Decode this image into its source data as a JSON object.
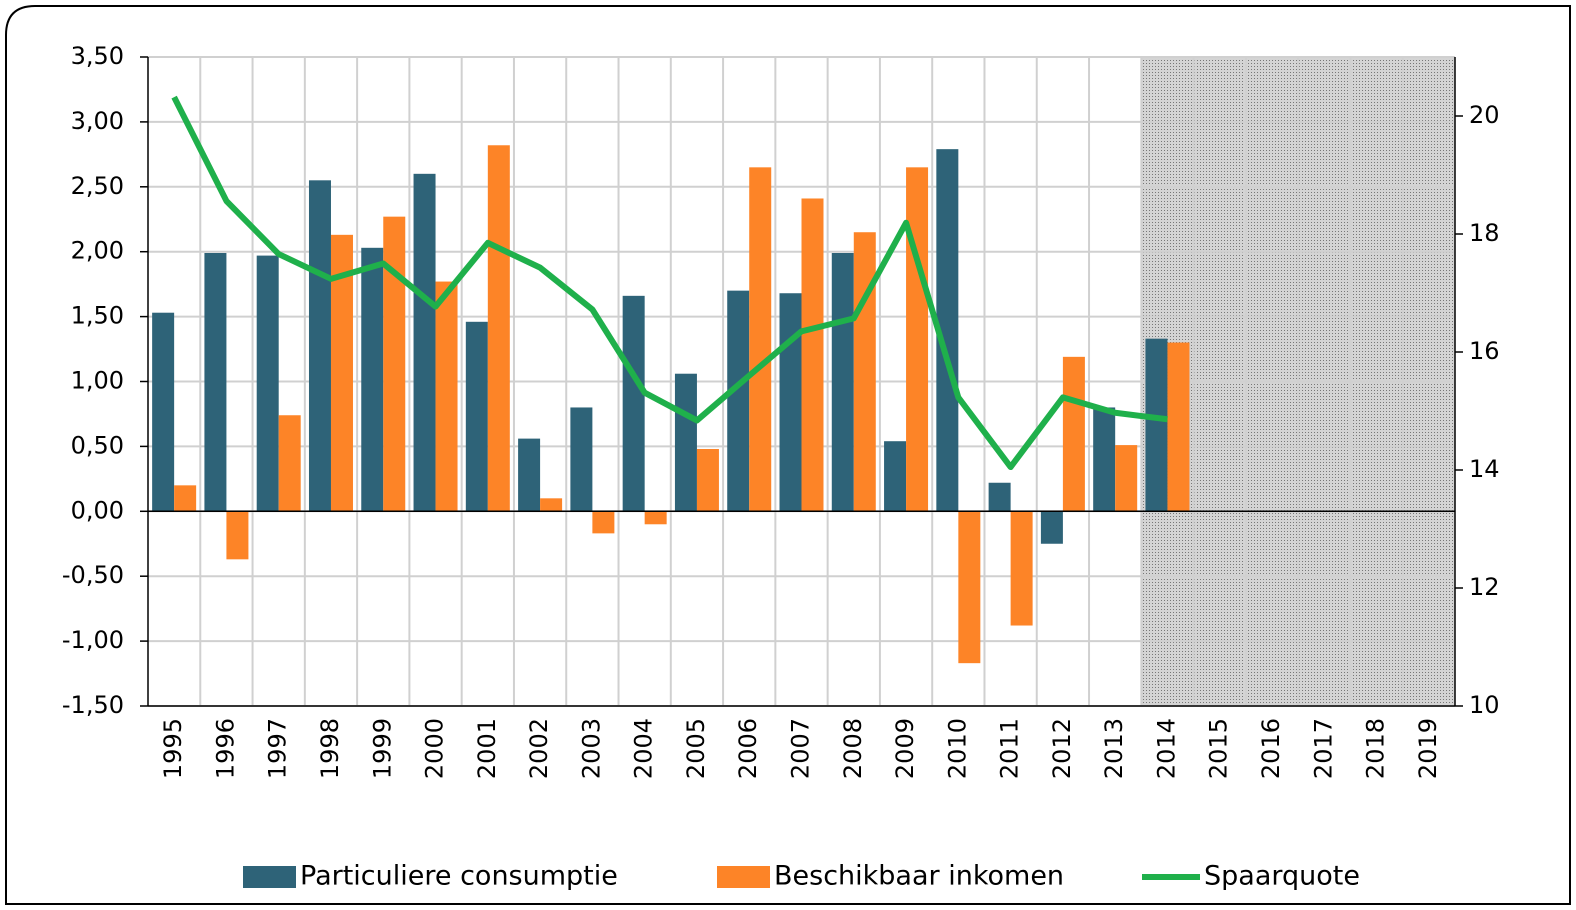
{
  "chart_data": {
    "type": "bar",
    "categories": [
      "1995",
      "1996",
      "1997",
      "1998",
      "1999",
      "2000",
      "2001",
      "2002",
      "2003",
      "2004",
      "2005",
      "2006",
      "2007",
      "2008",
      "2009",
      "2010",
      "2011",
      "2012",
      "2013",
      "2014",
      "2015",
      "2016",
      "2017",
      "2018",
      "2019"
    ],
    "series": [
      {
        "name": "Particuliere consumptie",
        "type": "bar",
        "color": "#2e6378",
        "values": [
          1.53,
          1.99,
          1.97,
          2.55,
          2.03,
          2.6,
          1.46,
          0.56,
          0.8,
          1.66,
          1.06,
          1.7,
          1.68,
          1.99,
          0.54,
          2.79,
          0.22,
          -0.25,
          0.8,
          1.33,
          null,
          null,
          null,
          null,
          null
        ]
      },
      {
        "name": "Beschikbaar inkomen",
        "type": "bar",
        "color": "#fd8427",
        "values": [
          0.2,
          -0.37,
          0.74,
          2.13,
          2.27,
          1.77,
          2.82,
          0.1,
          -0.17,
          -0.1,
          0.48,
          2.65,
          2.41,
          2.15,
          2.65,
          -1.17,
          -0.88,
          1.19,
          0.51,
          1.3,
          null,
          null,
          null,
          null,
          null
        ]
      },
      {
        "name": "Spaarquote",
        "type": "line",
        "axis": "y2",
        "color": "#1fb04b",
        "values": [
          20.32,
          18.56,
          17.66,
          17.24,
          17.5,
          16.77,
          17.85,
          17.43,
          16.72,
          15.31,
          14.84,
          15.6,
          16.35,
          16.57,
          18.19,
          15.23,
          14.05,
          15.23,
          14.97,
          14.86,
          null,
          null,
          null,
          null,
          null
        ]
      }
    ],
    "ylim": [
      -1.5,
      3.5
    ],
    "yticks": [
      {
        "value": -1.5,
        "label": "-1,50"
      },
      {
        "value": -1,
        "label": "-1,00"
      },
      {
        "value": -0.5,
        "label": "-0,50"
      },
      {
        "value": 0,
        "label": "0,00"
      },
      {
        "value": 0.5,
        "label": "0,50"
      },
      {
        "value": 1,
        "label": "1,00"
      },
      {
        "value": 1.5,
        "label": "1,50"
      },
      {
        "value": 2,
        "label": "2,00"
      },
      {
        "value": 2.5,
        "label": "2,50"
      },
      {
        "value": 3,
        "label": "3,00"
      },
      {
        "value": 3.5,
        "label": "3,50"
      }
    ],
    "y2lim": [
      10,
      21
    ],
    "y2ticks": [
      10,
      12,
      14,
      16,
      18,
      20
    ],
    "grid": true,
    "shaded_from": "2014",
    "legend": "bottom"
  }
}
